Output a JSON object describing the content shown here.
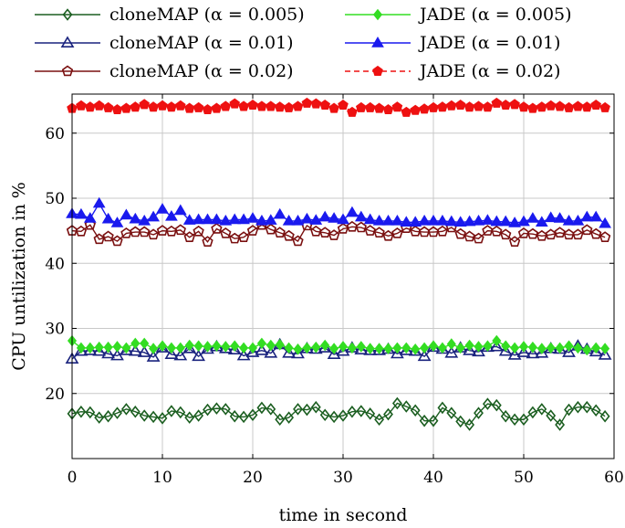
{
  "chart_data": {
    "type": "line",
    "title": "",
    "xlabel": "time in second",
    "ylabel": "CPU untilization in %",
    "xlim": [
      0,
      60
    ],
    "ylim": [
      10,
      66
    ],
    "xticks": [
      0,
      10,
      20,
      30,
      40,
      50,
      60
    ],
    "yticks": [
      20,
      30,
      40,
      50,
      60
    ],
    "grid": true,
    "legend_position": "top",
    "x": [
      0,
      1,
      2,
      3,
      4,
      5,
      6,
      7,
      8,
      9,
      10,
      11,
      12,
      13,
      14,
      15,
      16,
      17,
      18,
      19,
      20,
      21,
      22,
      23,
      24,
      25,
      26,
      27,
      28,
      29,
      30,
      31,
      32,
      33,
      34,
      35,
      36,
      37,
      38,
      39,
      40,
      41,
      42,
      43,
      44,
      45,
      46,
      47,
      48,
      49,
      50,
      51,
      52,
      53,
      54,
      55,
      56,
      57,
      58,
      59
    ],
    "series": [
      {
        "name": "cloneMAP (α = 0.005)",
        "color": "#1b5e20",
        "marker": "diamond-open",
        "dashed": false,
        "values": [
          16.9,
          17.2,
          17.1,
          16.3,
          16.5,
          17.0,
          17.6,
          17.2,
          16.6,
          16.4,
          16.2,
          17.3,
          17.1,
          16.3,
          16.6,
          17.5,
          17.7,
          17.6,
          16.5,
          16.4,
          16.7,
          17.8,
          17.6,
          16.0,
          16.3,
          17.6,
          17.5,
          17.9,
          16.7,
          16.4,
          16.6,
          17.2,
          17.3,
          16.9,
          16.0,
          16.8,
          18.5,
          18.0,
          17.4,
          15.8,
          15.8,
          17.8,
          17.0,
          15.7,
          15.2,
          17.0,
          18.4,
          18.2,
          16.5,
          16.0,
          16.0,
          17.1,
          17.6,
          16.6,
          15.2,
          17.5,
          17.9,
          17.9,
          17.4,
          16.5
        ]
      },
      {
        "name": "cloneMAP (α = 0.01)",
        "color": "#1a237e",
        "marker": "triangle-open",
        "dashed": false,
        "values": [
          25.3,
          26.5,
          26.6,
          26.5,
          26.1,
          25.8,
          26.6,
          26.5,
          26.3,
          25.6,
          27.0,
          26.0,
          25.8,
          26.9,
          25.7,
          26.8,
          27.2,
          26.9,
          26.7,
          25.8,
          26.3,
          26.6,
          26.2,
          27.5,
          26.2,
          26.1,
          26.9,
          26.8,
          27.0,
          26.0,
          26.5,
          27.0,
          26.7,
          26.6,
          26.6,
          26.8,
          26.1,
          26.6,
          26.5,
          25.7,
          27.1,
          26.8,
          26.2,
          27.0,
          26.6,
          26.4,
          27.1,
          27.2,
          26.5,
          25.9,
          26.3,
          26.1,
          26.2,
          26.9,
          26.8,
          26.3,
          27.3,
          26.8,
          26.4,
          25.9
        ]
      },
      {
        "name": "cloneMAP (α = 0.02)",
        "color": "#7a1010",
        "marker": "pentagon-open",
        "dashed": false,
        "values": [
          45.0,
          44.9,
          45.9,
          43.7,
          44.1,
          43.4,
          44.6,
          44.8,
          44.8,
          44.4,
          45.0,
          44.9,
          45.1,
          44.0,
          44.9,
          43.3,
          45.3,
          44.6,
          43.8,
          44.0,
          45.0,
          45.9,
          45.2,
          44.7,
          44.2,
          43.4,
          45.8,
          44.9,
          44.7,
          44.3,
          45.3,
          45.6,
          45.5,
          45.0,
          44.7,
          44.2,
          44.6,
          45.4,
          44.9,
          44.8,
          44.8,
          44.9,
          45.5,
          44.5,
          44.1,
          43.8,
          45.0,
          44.9,
          44.4,
          43.3,
          44.6,
          44.5,
          44.2,
          44.4,
          44.7,
          44.4,
          44.4,
          45.1,
          44.5,
          44.0
        ]
      },
      {
        "name": "JADE (α = 0.005)",
        "color": "#33dd22",
        "marker": "diamond-filled",
        "dashed": false,
        "values": [
          28.1,
          27.0,
          27.0,
          27.1,
          27.1,
          27.2,
          27.0,
          27.7,
          27.7,
          26.9,
          27.3,
          27.0,
          27.0,
          27.4,
          27.3,
          27.2,
          27.3,
          27.2,
          27.3,
          27.0,
          27.0,
          27.7,
          27.4,
          27.5,
          27.0,
          26.8,
          27.0,
          27.1,
          27.4,
          26.9,
          27.2,
          27.0,
          27.2,
          26.9,
          26.9,
          26.9,
          27.0,
          27.0,
          26.8,
          27.0,
          27.3,
          27.0,
          27.6,
          27.0,
          27.4,
          27.2,
          27.3,
          28.1,
          27.3,
          27.0,
          27.2,
          27.1,
          26.9,
          27.0,
          27.0,
          27.3,
          27.0,
          26.7,
          27.0,
          26.9
        ]
      },
      {
        "name": "JADE (α = 0.01)",
        "color": "#1a1aee",
        "marker": "triangle-filled",
        "dashed": false,
        "values": [
          47.6,
          47.5,
          46.9,
          49.2,
          46.8,
          46.2,
          47.4,
          46.8,
          46.5,
          47.1,
          48.3,
          47.2,
          48.1,
          46.6,
          46.7,
          46.7,
          46.7,
          46.5,
          46.7,
          46.7,
          46.9,
          46.5,
          46.6,
          47.5,
          46.5,
          46.5,
          46.8,
          46.6,
          47.1,
          46.9,
          46.7,
          47.8,
          47.1,
          46.7,
          46.5,
          46.5,
          46.5,
          46.3,
          46.3,
          46.5,
          46.5,
          46.5,
          46.4,
          46.3,
          46.4,
          46.5,
          46.6,
          46.4,
          46.4,
          46.2,
          46.4,
          46.9,
          46.3,
          47.0,
          46.9,
          46.5,
          46.5,
          47.1,
          47.1,
          46.1
        ]
      },
      {
        "name": "JADE (α = 0.02)",
        "color": "#ee1111",
        "marker": "pentagon-filled",
        "dashed": true,
        "values": [
          63.8,
          64.2,
          64.0,
          64.2,
          63.9,
          63.6,
          63.8,
          64.0,
          64.4,
          64.0,
          64.2,
          64.0,
          64.2,
          63.8,
          63.9,
          63.6,
          63.8,
          64.1,
          64.5,
          64.1,
          64.3,
          64.1,
          64.1,
          64.0,
          63.9,
          64.1,
          64.6,
          64.5,
          64.3,
          63.8,
          64.3,
          63.2,
          63.9,
          63.9,
          63.8,
          63.6,
          64.0,
          63.2,
          63.5,
          63.7,
          63.9,
          64.0,
          64.2,
          64.3,
          64.0,
          64.1,
          64.0,
          64.6,
          64.3,
          64.4,
          64.0,
          63.8,
          64.0,
          64.2,
          64.1,
          63.9,
          64.1,
          64.0,
          64.3,
          63.9
        ]
      }
    ]
  }
}
